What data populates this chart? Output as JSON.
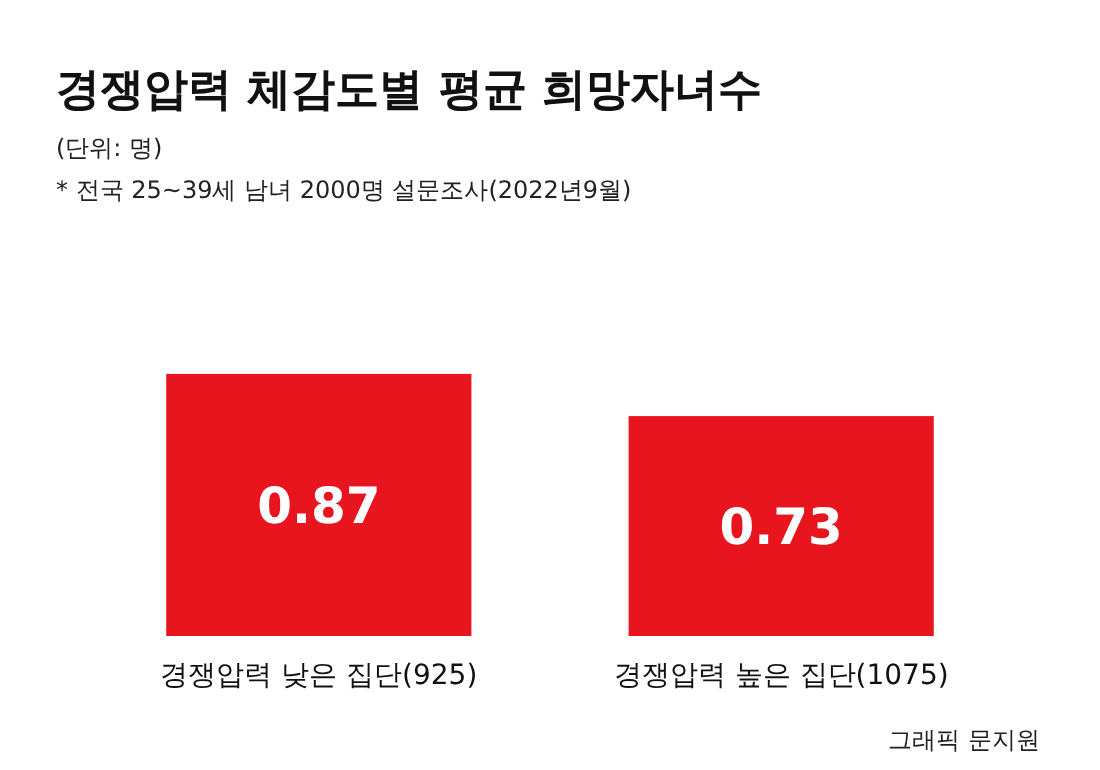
{
  "chart_data": {
    "type": "bar",
    "title": "경쟁압력 체감도별 평균 희망자녀수",
    "subtitle": "(단위: 명)",
    "annotations": [
      "* 전국 25~39세 남녀 2000명 설문조사(2022년9월)",
      "그래픽 문지원"
    ],
    "categories": [
      "경쟁압력 낮은 집단(925)",
      "경쟁압력 높은 집단(1075)"
    ],
    "values": [
      0.87,
      0.73
    ],
    "color": "#e8141e",
    "data_labels": true
  }
}
